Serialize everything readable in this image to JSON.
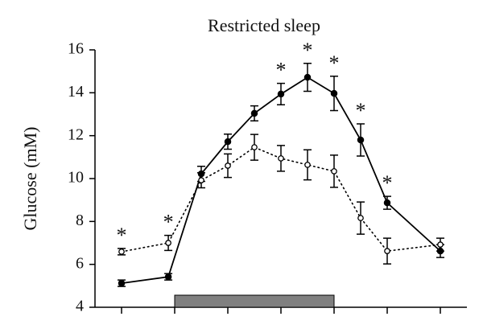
{
  "chart_data": {
    "type": "line",
    "title": "Restricted sleep",
    "y_label": "Glucose (mM)",
    "x": [
      0,
      0.88,
      1.5,
      2,
      2.5,
      3,
      3.5,
      4,
      4.5,
      5,
      6
    ],
    "xlim": [
      -0.5,
      6.5
    ],
    "xticks": [
      0,
      1,
      2,
      3,
      4,
      5,
      6
    ],
    "ylim": [
      4,
      16
    ],
    "yticks": [
      4,
      6,
      8,
      10,
      12,
      14,
      16
    ],
    "series": [
      {
        "color": "#000000",
        "marker": "filled",
        "line_style": "solid",
        "values": [
          5.12,
          5.42,
          10.22,
          11.72,
          13.04,
          13.94,
          14.72,
          13.97,
          11.8,
          8.87,
          6.62
        ],
        "errors": [
          0.15,
          0.15,
          0.35,
          0.35,
          0.35,
          0.5,
          0.65,
          0.8,
          0.75,
          0.3,
          0.3
        ]
      },
      {
        "color": "#000000",
        "marker": "open",
        "line_style": "dotted",
        "values": [
          6.59,
          7.0,
          9.92,
          10.6,
          11.46,
          10.94,
          10.64,
          10.34,
          8.16,
          6.62,
          6.92
        ],
        "errors": [
          0.15,
          0.35,
          0.35,
          0.55,
          0.6,
          0.6,
          0.7,
          0.75,
          0.75,
          0.6,
          0.3
        ]
      }
    ],
    "significance_marker": "*",
    "significant": [
      true,
      true,
      false,
      false,
      false,
      true,
      true,
      true,
      true,
      true,
      false
    ],
    "shaded_interval": [
      1,
      4
    ],
    "shaded_color": "#808080"
  }
}
